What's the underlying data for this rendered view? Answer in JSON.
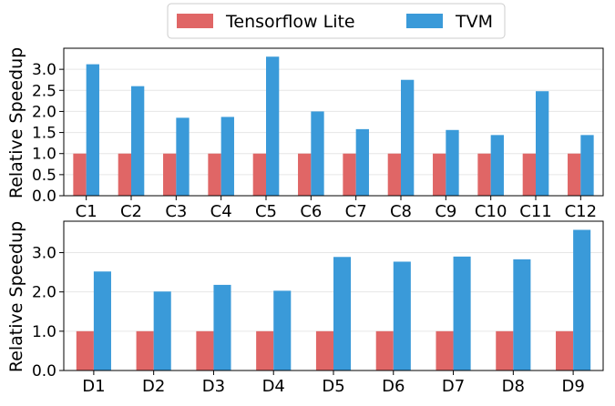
{
  "legend": {
    "placement": "top-center",
    "entries": [
      {
        "label": "Tensorflow Lite",
        "color": "#e06666"
      },
      {
        "label": "TVM",
        "color": "#3a9ad9"
      }
    ]
  },
  "chart_data": [
    {
      "type": "bar",
      "ylabel": "Relative Speedup",
      "xlabel": "",
      "ylim": [
        0,
        3.5
      ],
      "yticks": [
        "0.0",
        "0.5",
        "1.0",
        "1.5",
        "2.0",
        "2.5",
        "3.0"
      ],
      "grid": true,
      "categories": [
        "C1",
        "C2",
        "C3",
        "C4",
        "C5",
        "C6",
        "C7",
        "C8",
        "C9",
        "C10",
        "C11",
        "C12"
      ],
      "series": [
        {
          "name": "Tensorflow Lite",
          "values": [
            1,
            1,
            1,
            1,
            1,
            1,
            1,
            1,
            1,
            1,
            1,
            1
          ]
        },
        {
          "name": "TVM",
          "values": [
            3.12,
            2.6,
            1.85,
            1.87,
            3.3,
            2.0,
            1.58,
            2.75,
            1.56,
            1.44,
            2.48,
            1.44
          ]
        }
      ]
    },
    {
      "type": "bar",
      "ylabel": "Relative Speedup",
      "xlabel": "",
      "ylim": [
        0,
        3.8
      ],
      "yticks": [
        "0.0",
        "1.0",
        "2.0",
        "3.0"
      ],
      "grid": true,
      "categories": [
        "D1",
        "D2",
        "D3",
        "D4",
        "D5",
        "D6",
        "D7",
        "D8",
        "D9"
      ],
      "series": [
        {
          "name": "Tensorflow Lite",
          "values": [
            1,
            1,
            1,
            1,
            1,
            1,
            1,
            1,
            1
          ]
        },
        {
          "name": "TVM",
          "values": [
            2.52,
            2.01,
            2.18,
            2.03,
            2.89,
            2.77,
            2.9,
            2.83,
            3.58
          ]
        }
      ]
    }
  ]
}
